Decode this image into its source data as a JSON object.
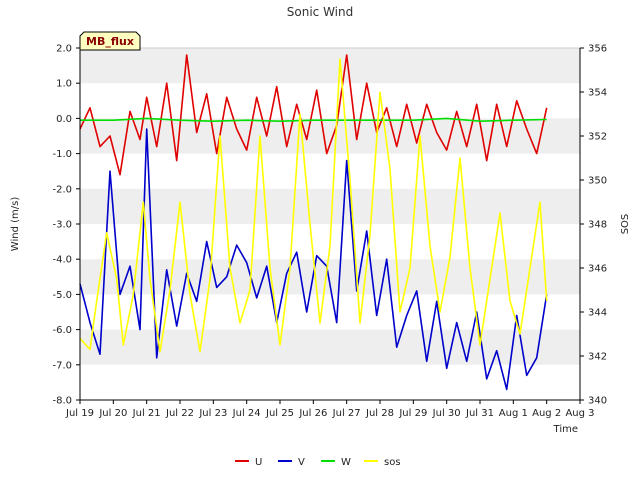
{
  "badge": "MB_flux",
  "chart_data": {
    "type": "line",
    "title": "Sonic Wind",
    "xlabel": "Time",
    "ylabel": "Wind (m/s)",
    "y2label": "SOS",
    "xlim": [
      0,
      15
    ],
    "ylim": [
      -8.0,
      2.0
    ],
    "y2lim": [
      340,
      356
    ],
    "x_ticks": [
      {
        "pos": 0,
        "label": "Jul 19"
      },
      {
        "pos": 1,
        "label": "Jul 20"
      },
      {
        "pos": 2,
        "label": "Jul 21"
      },
      {
        "pos": 3,
        "label": "Jul 22"
      },
      {
        "pos": 4,
        "label": "Jul 23"
      },
      {
        "pos": 5,
        "label": "Jul 24"
      },
      {
        "pos": 6,
        "label": "Jul 25"
      },
      {
        "pos": 7,
        "label": "Jul 26"
      },
      {
        "pos": 8,
        "label": "Jul 27"
      },
      {
        "pos": 9,
        "label": "Jul 28"
      },
      {
        "pos": 10,
        "label": "Jul 29"
      },
      {
        "pos": 11,
        "label": "Jul 30"
      },
      {
        "pos": 12,
        "label": "Jul 31"
      },
      {
        "pos": 13,
        "label": "Aug 1"
      },
      {
        "pos": 14,
        "label": "Aug 2"
      },
      {
        "pos": 15,
        "label": "Aug 3"
      }
    ],
    "y_ticks": [
      {
        "value": -8.0,
        "label": "-8.0"
      },
      {
        "value": -7.0,
        "label": "-7.0"
      },
      {
        "value": -6.0,
        "label": "-6.0"
      },
      {
        "value": -5.0,
        "label": "-5.0"
      },
      {
        "value": -4.0,
        "label": "-4.0"
      },
      {
        "value": -3.0,
        "label": "-3.0"
      },
      {
        "value": -2.0,
        "label": "-2.0"
      },
      {
        "value": -1.0,
        "label": "-1.0"
      },
      {
        "value": 0.0,
        "label": "0.0"
      },
      {
        "value": 1.0,
        "label": "1.0"
      },
      {
        "value": 2.0,
        "label": "2.0"
      }
    ],
    "y2_ticks": [
      {
        "value": 340,
        "label": "340"
      },
      {
        "value": 342,
        "label": "342"
      },
      {
        "value": 344,
        "label": "344"
      },
      {
        "value": 346,
        "label": "346"
      },
      {
        "value": 348,
        "label": "348"
      },
      {
        "value": 350,
        "label": "350"
      },
      {
        "value": 352,
        "label": "352"
      },
      {
        "value": 354,
        "label": "354"
      },
      {
        "value": 356,
        "label": "356"
      }
    ],
    "series": [
      {
        "name": "U",
        "color": "#e00000",
        "axis": "left",
        "x": [
          0.0,
          0.3,
          0.6,
          0.9,
          1.2,
          1.5,
          1.8,
          2.0,
          2.3,
          2.6,
          2.9,
          3.2,
          3.5,
          3.8,
          4.1,
          4.4,
          4.7,
          5.0,
          5.3,
          5.6,
          5.9,
          6.2,
          6.5,
          6.8,
          7.1,
          7.4,
          7.7,
          8.0,
          8.3,
          8.6,
          8.9,
          9.2,
          9.5,
          9.8,
          10.1,
          10.4,
          10.7,
          11.0,
          11.3,
          11.6,
          11.9,
          12.2,
          12.5,
          12.8,
          13.1,
          13.4,
          13.7,
          14.0
        ],
        "values": [
          -0.3,
          0.3,
          -0.8,
          -0.5,
          -1.6,
          0.2,
          -0.6,
          0.6,
          -0.8,
          1.0,
          -1.2,
          1.8,
          -0.4,
          0.7,
          -1.0,
          0.6,
          -0.3,
          -0.9,
          0.6,
          -0.5,
          0.9,
          -0.8,
          0.4,
          -0.6,
          0.8,
          -1.0,
          -0.2,
          1.8,
          -0.6,
          1.0,
          -0.4,
          0.3,
          -0.8,
          0.4,
          -0.7,
          0.4,
          -0.4,
          -0.9,
          0.2,
          -0.8,
          0.4,
          -1.2,
          0.4,
          -0.8,
          0.5,
          -0.3,
          -1.0,
          0.3
        ]
      },
      {
        "name": "V",
        "color": "#0000cc",
        "axis": "left",
        "x": [
          0.0,
          0.3,
          0.6,
          0.9,
          1.2,
          1.5,
          1.8,
          2.0,
          2.3,
          2.6,
          2.9,
          3.2,
          3.5,
          3.8,
          4.1,
          4.4,
          4.7,
          5.0,
          5.3,
          5.6,
          5.9,
          6.2,
          6.5,
          6.8,
          7.1,
          7.4,
          7.7,
          8.0,
          8.3,
          8.6,
          8.9,
          9.2,
          9.5,
          9.8,
          10.1,
          10.4,
          10.7,
          11.0,
          11.3,
          11.6,
          11.9,
          12.2,
          12.5,
          12.8,
          13.1,
          13.4,
          13.7,
          14.0
        ],
        "values": [
          -4.7,
          -5.8,
          -6.7,
          -1.5,
          -5.0,
          -4.2,
          -6.0,
          -0.3,
          -6.8,
          -4.3,
          -5.9,
          -4.4,
          -5.2,
          -3.5,
          -4.8,
          -4.5,
          -3.6,
          -4.1,
          -5.1,
          -4.2,
          -5.8,
          -4.4,
          -3.8,
          -5.5,
          -3.9,
          -4.2,
          -5.8,
          -1.2,
          -4.9,
          -3.2,
          -5.6,
          -4.0,
          -6.5,
          -5.6,
          -4.9,
          -6.9,
          -5.2,
          -7.1,
          -5.8,
          -6.9,
          -5.5,
          -7.4,
          -6.6,
          -7.7,
          -5.6,
          -7.3,
          -6.8,
          -5.0
        ]
      },
      {
        "name": "W",
        "color": "#00dd00",
        "axis": "left",
        "x": [
          0.0,
          1.0,
          2.0,
          3.0,
          4.0,
          5.0,
          6.0,
          7.0,
          8.0,
          9.0,
          10.0,
          11.0,
          12.0,
          13.0,
          14.0
        ],
        "values": [
          -0.05,
          -0.05,
          0.0,
          -0.05,
          -0.08,
          -0.05,
          -0.08,
          -0.05,
          -0.05,
          -0.05,
          -0.05,
          0.0,
          -0.08,
          -0.05,
          -0.03
        ]
      },
      {
        "name": "sos",
        "color": "#ffff00",
        "axis": "right",
        "x": [
          0.0,
          0.3,
          0.5,
          0.8,
          1.1,
          1.3,
          1.6,
          1.9,
          2.1,
          2.4,
          2.7,
          3.0,
          3.3,
          3.6,
          3.9,
          4.2,
          4.5,
          4.8,
          5.1,
          5.4,
          5.7,
          6.0,
          6.3,
          6.6,
          6.9,
          7.2,
          7.5,
          7.8,
          8.1,
          8.4,
          8.7,
          9.0,
          9.3,
          9.6,
          9.9,
          10.2,
          10.5,
          10.8,
          11.1,
          11.4,
          11.7,
          12.0,
          12.3,
          12.6,
          12.9,
          13.2,
          13.5,
          13.8,
          14.0
        ],
        "values": [
          342.8,
          342.3,
          344.5,
          347.6,
          345.5,
          342.5,
          344.8,
          349.0,
          345.5,
          342.2,
          345.0,
          349.0,
          344.8,
          342.2,
          345.5,
          352.0,
          346.0,
          343.5,
          345.0,
          352.0,
          346.0,
          342.5,
          346.0,
          353.0,
          348.0,
          343.5,
          347.0,
          355.5,
          350.0,
          343.5,
          347.5,
          354.0,
          350.5,
          344.0,
          346.0,
          352.0,
          347.0,
          344.0,
          346.5,
          351.0,
          346.0,
          342.5,
          345.5,
          348.5,
          344.5,
          343.0,
          346.0,
          349.0,
          344.5
        ]
      }
    ],
    "legend": [
      "U",
      "V",
      "W",
      "sos"
    ],
    "legend_position": "bottom-center",
    "grid": "horizontal-bands"
  }
}
